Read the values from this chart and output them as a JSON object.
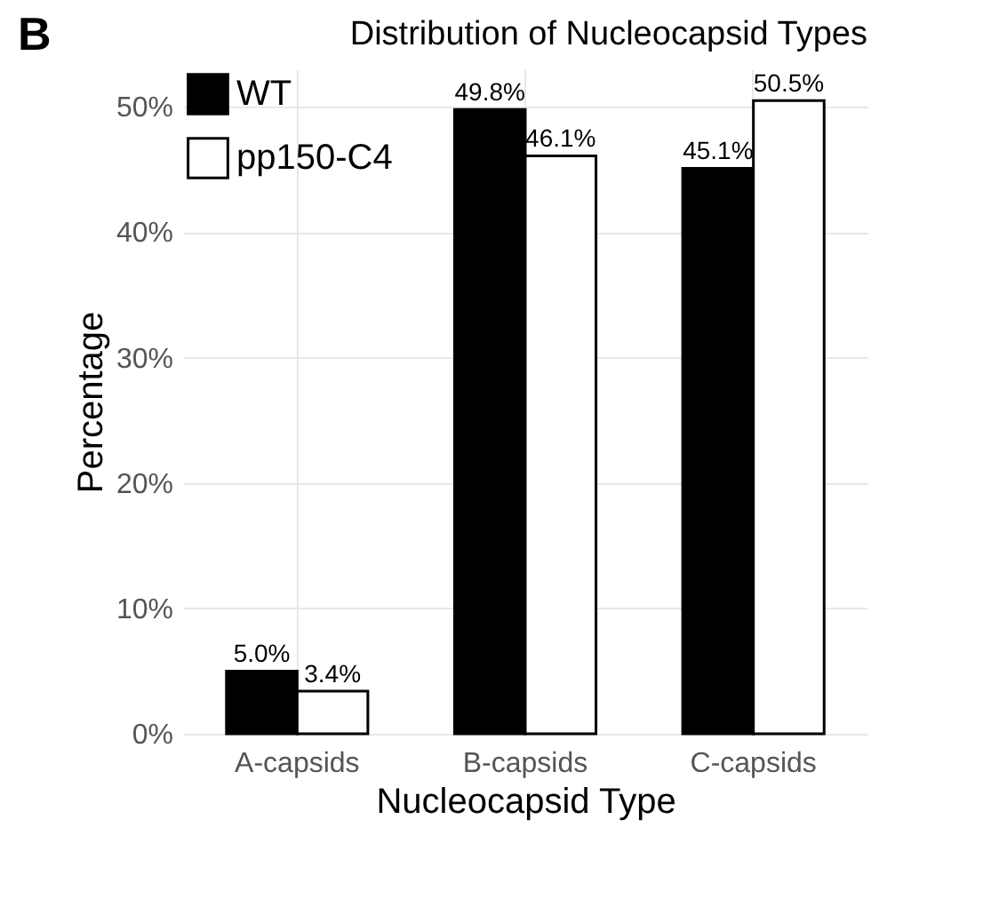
{
  "chart_data": {
    "type": "bar",
    "title": "Distribution of Nucleocapsid Types",
    "xlabel": "Nucleocapsid Type",
    "ylabel": "Percentage",
    "annotations": [
      "B"
    ],
    "categories": [
      "A-capsids",
      "B-capsids",
      "C-capsids"
    ],
    "series": [
      {
        "name": "WT",
        "color": "#000000",
        "values": [
          5.0,
          49.8,
          45.1
        ],
        "value_labels": [
          "5.0%",
          "49.8%",
          "45.1%"
        ]
      },
      {
        "name": "pp150-C4",
        "color": "#ffffff",
        "values": [
          3.4,
          46.1,
          50.5
        ],
        "value_labels": [
          "3.4%",
          "46.1%",
          "50.5%"
        ]
      }
    ],
    "ylim": [
      0,
      53
    ],
    "yticks": [
      {
        "value": 0,
        "label": "0%"
      },
      {
        "value": 10,
        "label": "10%"
      },
      {
        "value": 20,
        "label": "20%"
      },
      {
        "value": 30,
        "label": "30%"
      },
      {
        "value": 40,
        "label": "40%"
      },
      {
        "value": 50,
        "label": "50%"
      }
    ],
    "grid": true,
    "legend": "top left"
  }
}
